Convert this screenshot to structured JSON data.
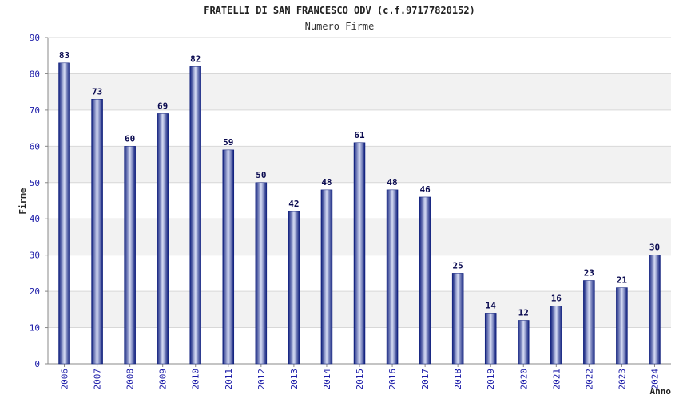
{
  "chart_data": {
    "type": "bar",
    "title": "FRATELLI DI SAN FRANCESCO ODV (c.f.97177820152)",
    "subtitle": "Numero Firme",
    "xlabel": "Anno",
    "ylabel": "Firme",
    "categories": [
      "2006",
      "2007",
      "2008",
      "2009",
      "2010",
      "2011",
      "2012",
      "2013",
      "2014",
      "2015",
      "2016",
      "2017",
      "2018",
      "2019",
      "2020",
      "2021",
      "2022",
      "2023",
      "2024"
    ],
    "values": [
      83,
      73,
      60,
      69,
      82,
      59,
      50,
      42,
      48,
      61,
      48,
      46,
      25,
      14,
      12,
      16,
      23,
      21,
      30
    ],
    "ylim": [
      0,
      90
    ],
    "yticks": [
      0,
      10,
      20,
      30,
      40,
      50,
      60,
      70,
      80,
      90
    ],
    "grid": true,
    "legend": "none",
    "colors": {
      "bar_dark": "#0a1a7a",
      "bar_light": "#d6dcf4",
      "band": "#f2f2f2",
      "grid": "#d8d8d8",
      "tick_text": "#1a1aa8"
    }
  }
}
